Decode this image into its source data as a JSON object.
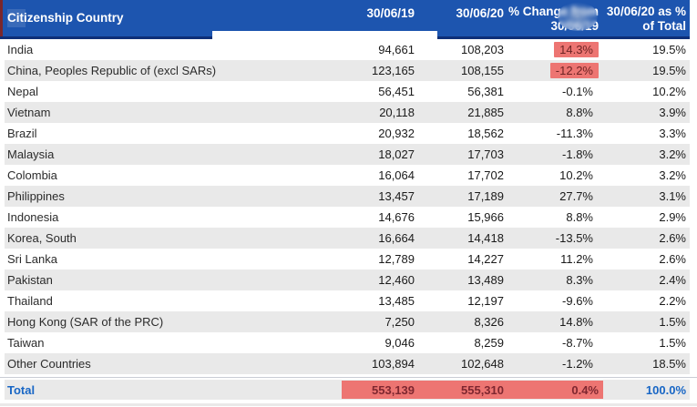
{
  "chart_data": {
    "type": "table",
    "columns": [
      "Citizenship Country",
      "30/06/19",
      "30/06/20",
      "% Change from\n30/06/19",
      "30/06/20 as %\nof Total"
    ],
    "rows": [
      {
        "country": "India",
        "y2019": "94,661",
        "y2020": "108,203",
        "change": "14.3%",
        "share": "19.5%",
        "highlight": true
      },
      {
        "country": "China, Peoples Republic of (excl SARs)",
        "y2019": "123,165",
        "y2020": "108,155",
        "change": "-12.2%",
        "share": "19.5%",
        "highlight": true
      },
      {
        "country": "Nepal",
        "y2019": "56,451",
        "y2020": "56,381",
        "change": "-0.1%",
        "share": "10.2%",
        "highlight": false
      },
      {
        "country": "Vietnam",
        "y2019": "20,118",
        "y2020": "21,885",
        "change": "8.8%",
        "share": "3.9%",
        "highlight": false
      },
      {
        "country": "Brazil",
        "y2019": "20,932",
        "y2020": "18,562",
        "change": "-11.3%",
        "share": "3.3%",
        "highlight": false
      },
      {
        "country": "Malaysia",
        "y2019": "18,027",
        "y2020": "17,703",
        "change": "-1.8%",
        "share": "3.2%",
        "highlight": false
      },
      {
        "country": "Colombia",
        "y2019": "16,064",
        "y2020": "17,702",
        "change": "10.2%",
        "share": "3.2%",
        "highlight": false
      },
      {
        "country": "Philippines",
        "y2019": "13,457",
        "y2020": "17,189",
        "change": "27.7%",
        "share": "3.1%",
        "highlight": false
      },
      {
        "country": "Indonesia",
        "y2019": "14,676",
        "y2020": "15,966",
        "change": "8.8%",
        "share": "2.9%",
        "highlight": false
      },
      {
        "country": "Korea, South",
        "y2019": "16,664",
        "y2020": "14,418",
        "change": "-13.5%",
        "share": "2.6%",
        "highlight": false
      },
      {
        "country": "Sri Lanka",
        "y2019": "12,789",
        "y2020": "14,227",
        "change": "11.2%",
        "share": "2.6%",
        "highlight": false
      },
      {
        "country": "Pakistan",
        "y2019": "12,460",
        "y2020": "13,489",
        "change": "8.3%",
        "share": "2.4%",
        "highlight": false
      },
      {
        "country": "Thailand",
        "y2019": "13,485",
        "y2020": "12,197",
        "change": "-9.6%",
        "share": "2.2%",
        "highlight": false
      },
      {
        "country": "Hong Kong (SAR of the PRC)",
        "y2019": "7,250",
        "y2020": "8,326",
        "change": "14.8%",
        "share": "1.5%",
        "highlight": false
      },
      {
        "country": "Taiwan",
        "y2019": "9,046",
        "y2020": "8,259",
        "change": "-8.7%",
        "share": "1.5%",
        "highlight": false
      },
      {
        "country": "Other Countries",
        "y2019": "103,894",
        "y2020": "102,648",
        "change": "-1.2%",
        "share": "18.5%",
        "highlight": false
      }
    ],
    "total": {
      "label": "Total",
      "y2019": "553,139",
      "y2020": "555,310",
      "change": "0.4%",
      "share": "100.0%"
    }
  },
  "colors": {
    "header_bg": "#1d55af",
    "header_border": "#0e2f78",
    "header_text": "#ffffff",
    "stripe_bg": "#e9e9e9",
    "hl_bg": "#ed7572",
    "hl_text": "#6e2424",
    "total_text": "#1866c5",
    "total_num_text": "#7e2730",
    "separator": "#c9cdd5",
    "artifact_red": "#8b1f14"
  }
}
